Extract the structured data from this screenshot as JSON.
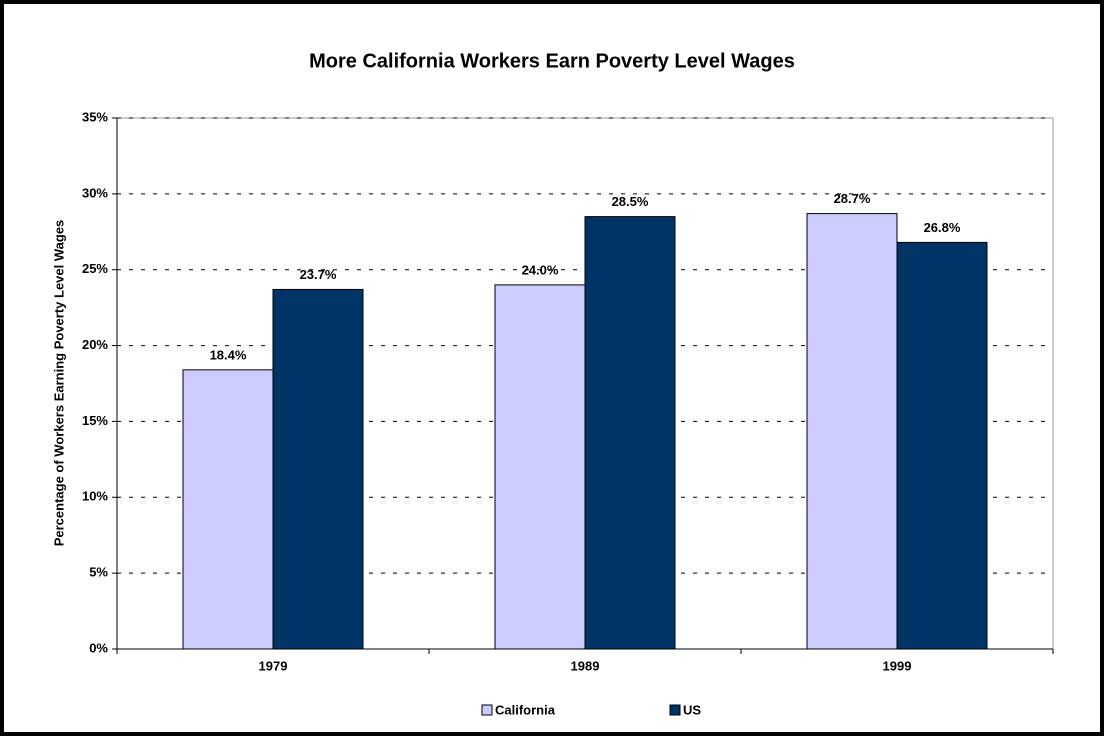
{
  "chart_data": {
    "type": "bar",
    "title": "More California Workers Earn Poverty Level Wages",
    "y_label": "Percentage of Workers Earning Poverty Level Wages",
    "categories": [
      "1979",
      "1989",
      "1999"
    ],
    "series": [
      {
        "name": "California",
        "color": "#ccccff",
        "values": [
          18.4,
          24.0,
          28.7
        ],
        "value_labels": [
          "18.4%",
          "24.0%",
          "28.7%"
        ]
      },
      {
        "name": "US",
        "color": "#003366",
        "values": [
          23.7,
          28.5,
          26.8
        ],
        "value_labels": [
          "23.7%",
          "28.5%",
          "26.8%"
        ]
      }
    ],
    "ylim": [
      0,
      35
    ],
    "yticks": [
      {
        "value": 0,
        "label": "0%"
      },
      {
        "value": 5,
        "label": "5%"
      },
      {
        "value": 10,
        "label": "10%"
      },
      {
        "value": 15,
        "label": "15%"
      },
      {
        "value": 20,
        "label": "20%"
      },
      {
        "value": 25,
        "label": "25%"
      },
      {
        "value": 30,
        "label": "30%"
      },
      {
        "value": 35,
        "label": "35%"
      }
    ],
    "grid": true,
    "legend": "bottom"
  }
}
